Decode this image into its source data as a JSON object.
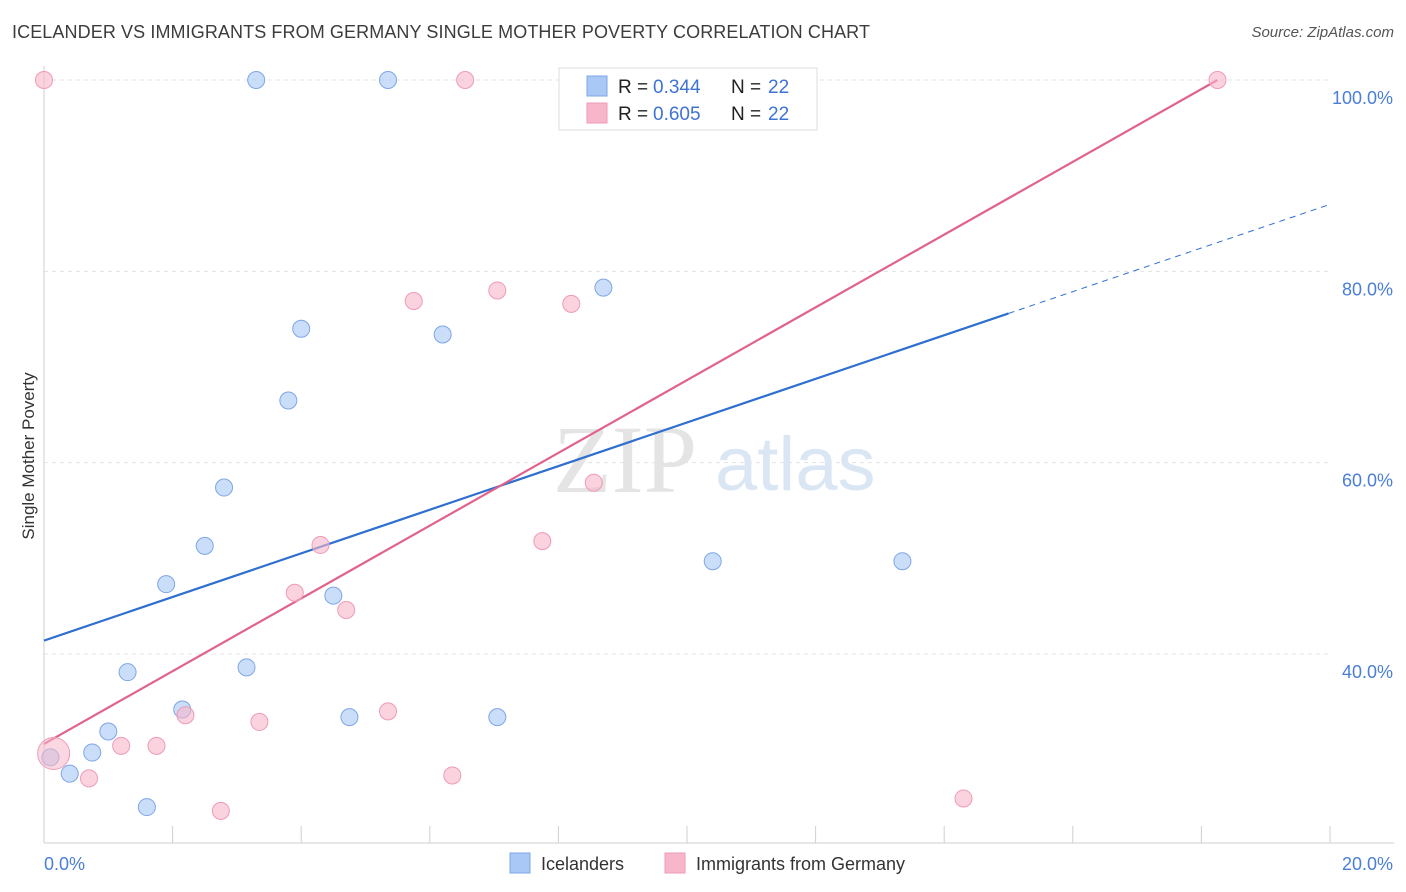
{
  "title": "ICELANDER VS IMMIGRANTS FROM GERMANY SINGLE MOTHER POVERTY CORRELATION CHART",
  "source": "Source: ZipAtlas.com",
  "watermark": {
    "zip": "ZIP",
    "atlas": "atlas"
  },
  "chart_data": {
    "type": "scatter",
    "ylabel": "Single Mother Poverty",
    "xlim": [
      0,
      20
    ],
    "ylim": [
      22,
      102
    ],
    "x_ticks": [
      {
        "value": 0,
        "label": "0.0%"
      },
      {
        "value": 20,
        "label": "20.0%"
      }
    ],
    "y_ticks": [
      {
        "value": 40,
        "label": "40.0%"
      },
      {
        "value": 60,
        "label": "60.0%"
      },
      {
        "value": 80,
        "label": "80.0%"
      },
      {
        "value": 100,
        "label": "100.0%"
      }
    ],
    "grid": true,
    "legend_top": [
      {
        "r_label": "R =",
        "r_value": "0.344",
        "n_label": "N =",
        "n_value": "22",
        "color": "#a9c8f5"
      },
      {
        "r_label": "R =",
        "r_value": "0.605",
        "n_label": "N =",
        "n_value": "22",
        "color": "#f7b6c9"
      }
    ],
    "series": [
      {
        "name": "Icelanders",
        "color": "#a9c8f5",
        "line_color": "#2f6fd0",
        "trend": {
          "x0": 0,
          "y0": 41.4,
          "x1": 15.0,
          "y1": 75.6,
          "dash_to_x": 20.0,
          "dash_to_y": 87.0
        },
        "points": [
          [
            0.1,
            29.2
          ],
          [
            0.4,
            27.5
          ],
          [
            0.75,
            29.7
          ],
          [
            1.0,
            31.9
          ],
          [
            1.3,
            38.1
          ],
          [
            1.6,
            24.0
          ],
          [
            1.9,
            47.3
          ],
          [
            2.15,
            34.2
          ],
          [
            2.5,
            51.3
          ],
          [
            2.8,
            57.4
          ],
          [
            3.15,
            38.6
          ],
          [
            3.3,
            100.0
          ],
          [
            3.8,
            66.5
          ],
          [
            4.0,
            74.0
          ],
          [
            4.5,
            46.1
          ],
          [
            4.75,
            33.4
          ],
          [
            5.35,
            100.0
          ],
          [
            6.2,
            73.4
          ],
          [
            7.05,
            33.4
          ],
          [
            8.7,
            78.3
          ],
          [
            10.4,
            49.7
          ],
          [
            13.35,
            49.7
          ]
        ]
      },
      {
        "name": "Immigrants from Germany",
        "color": "#f7b6c9",
        "line_color": "#e0628d",
        "trend": {
          "x0": 0,
          "y0": 30.6,
          "x1": 18.25,
          "y1": 100.0
        },
        "points": [
          [
            0.15,
            29.6
          ],
          [
            0.7,
            27.0
          ],
          [
            1.2,
            30.4
          ],
          [
            1.75,
            30.4
          ],
          [
            2.2,
            33.6
          ],
          [
            2.75,
            23.6
          ],
          [
            3.35,
            32.9
          ],
          [
            3.9,
            46.4
          ],
          [
            4.3,
            51.4
          ],
          [
            4.7,
            44.6
          ],
          [
            5.35,
            34.0
          ],
          [
            5.75,
            76.9
          ],
          [
            6.35,
            27.3
          ],
          [
            6.55,
            100.0
          ],
          [
            7.05,
            78.0
          ],
          [
            7.75,
            51.8
          ],
          [
            8.2,
            76.6
          ],
          [
            8.55,
            57.9
          ],
          [
            10.4,
            100.0
          ],
          [
            14.3,
            24.9
          ],
          [
            18.25,
            100.0
          ],
          [
            0.0,
            100.0
          ]
        ]
      }
    ]
  }
}
